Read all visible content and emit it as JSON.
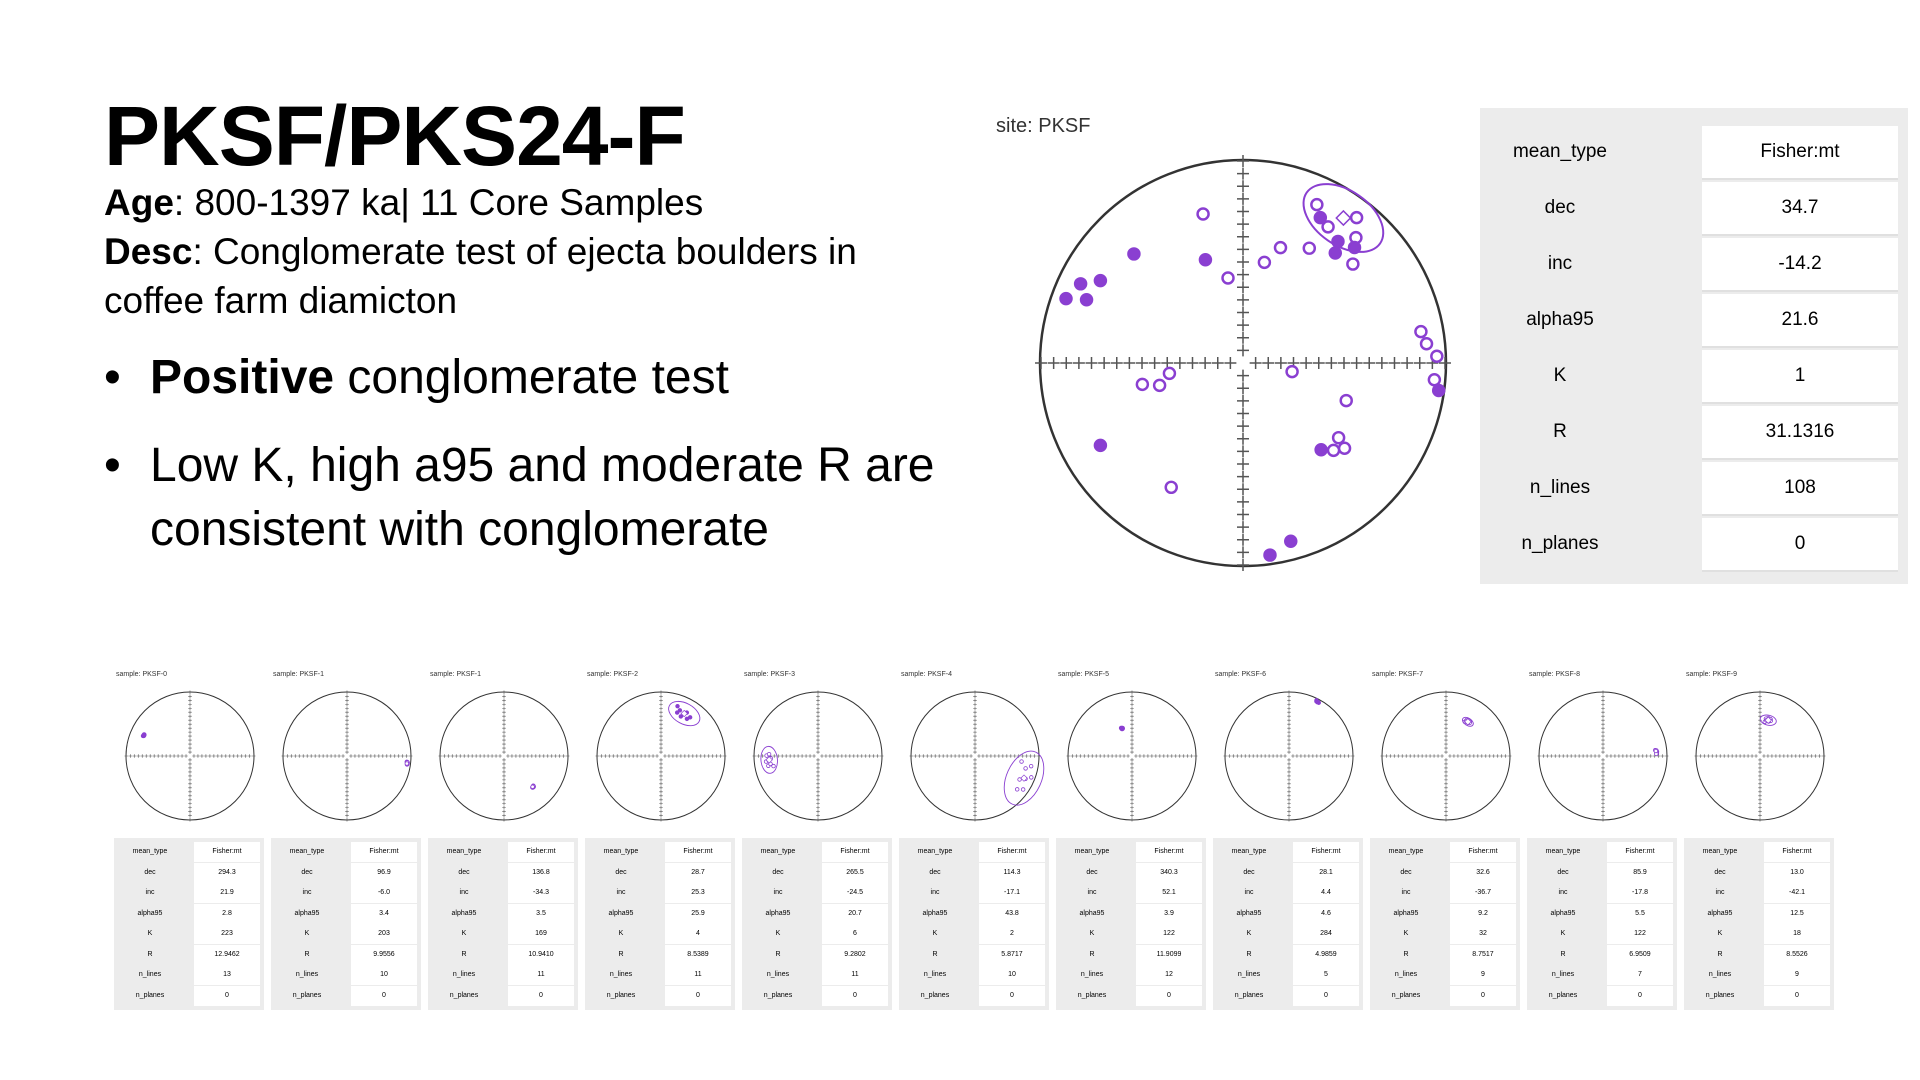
{
  "slide": {
    "title": "PKSF/PKS24-F",
    "age_label": "Age",
    "age_value": ": 800-1397 ka| 11 Core Samples",
    "desc_label": "Desc",
    "desc_value": ": Conglomerate test of ejecta boulders in coffee farm diamicton",
    "bullets": [
      {
        "bold": "Positive",
        "rest": " conglomerate test"
      },
      {
        "bold": "",
        "rest": "Low K, high a95 and moderate R are consistent with conglomerate"
      }
    ],
    "bullet_glyph": "•"
  },
  "colors": {
    "accent": "#8a3fd1",
    "ring": "#333333",
    "panel": "#ececec"
  },
  "chart_data": {
    "type": "scatter",
    "title": "site: PKSF",
    "projection": "equal-area stereonet",
    "mean": {
      "dec": 34.7,
      "inc": -14.2,
      "alpha95": 21.6
    },
    "points": [
      {
        "dec": 345,
        "inc": -25,
        "hemisphere": "upper"
      },
      {
        "dec": 25,
        "inc": -15,
        "hemisphere": "upper"
      },
      {
        "dec": 32,
        "inc": -22,
        "hemisphere": "upper"
      },
      {
        "dec": 38,
        "inc": -10,
        "hemisphere": "upper"
      },
      {
        "dec": 42,
        "inc": -18,
        "hemisphere": "upper"
      },
      {
        "dec": 30,
        "inc": -35,
        "hemisphere": "upper"
      },
      {
        "dec": 48,
        "inc": -28,
        "hemisphere": "upper"
      },
      {
        "dec": 18,
        "inc": -40,
        "hemisphere": "upper"
      },
      {
        "dec": 12,
        "inc": -48,
        "hemisphere": "upper"
      },
      {
        "dec": 350,
        "inc": -55,
        "hemisphere": "upper"
      },
      {
        "dec": 40,
        "inc": -30,
        "hemisphere": "lower"
      },
      {
        "dec": 38,
        "inc": -25,
        "hemisphere": "lower"
      },
      {
        "dec": 44,
        "inc": -22,
        "hemisphere": "lower"
      },
      {
        "dec": 28,
        "inc": -20,
        "hemisphere": "lower"
      },
      {
        "dec": 340,
        "inc": -45,
        "hemisphere": "lower"
      },
      {
        "dec": 300,
        "inc": -20,
        "hemisphere": "lower"
      },
      {
        "dec": 296,
        "inc": -12,
        "hemisphere": "lower"
      },
      {
        "dec": 292,
        "inc": -18,
        "hemisphere": "lower"
      },
      {
        "dec": 290,
        "inc": -8,
        "hemisphere": "lower"
      },
      {
        "dec": 315,
        "inc": -25,
        "hemisphere": "lower"
      },
      {
        "dec": 88,
        "inc": -5,
        "hemisphere": "upper"
      },
      {
        "dec": 84,
        "inc": -10,
        "hemisphere": "upper"
      },
      {
        "dec": 80,
        "inc": -12,
        "hemisphere": "upper"
      },
      {
        "dec": 95,
        "inc": -6,
        "hemisphere": "upper"
      },
      {
        "dec": 98,
        "inc": -3,
        "hemisphere": "lower"
      },
      {
        "dec": 130,
        "inc": -35,
        "hemisphere": "upper"
      },
      {
        "dec": 128,
        "inc": -40,
        "hemisphere": "upper"
      },
      {
        "dec": 134,
        "inc": -38,
        "hemisphere": "upper"
      },
      {
        "dec": 138,
        "inc": -42,
        "hemisphere": "lower"
      },
      {
        "dec": 165,
        "inc": -10,
        "hemisphere": "lower"
      },
      {
        "dec": 172,
        "inc": -5,
        "hemisphere": "lower"
      },
      {
        "dec": 210,
        "inc": -30,
        "hemisphere": "upper"
      },
      {
        "dec": 240,
        "inc": -20,
        "hemisphere": "lower"
      },
      {
        "dec": 255,
        "inc": -55,
        "hemisphere": "upper"
      },
      {
        "dec": 258,
        "inc": -48,
        "hemisphere": "upper"
      },
      {
        "dec": 262,
        "inc": -60,
        "hemisphere": "upper"
      },
      {
        "dec": 110,
        "inc": -45,
        "hemisphere": "upper"
      },
      {
        "dec": 100,
        "inc": -70,
        "hemisphere": "upper"
      }
    ],
    "stats": [
      {
        "key": "mean_type",
        "value": "Fisher:mt"
      },
      {
        "key": "dec",
        "value": "34.7"
      },
      {
        "key": "inc",
        "value": "-14.2"
      },
      {
        "key": "alpha95",
        "value": "21.6"
      },
      {
        "key": "K",
        "value": "1"
      },
      {
        "key": "R",
        "value": "31.1316"
      },
      {
        "key": "n_lines",
        "value": "108"
      },
      {
        "key": "n_planes",
        "value": "0"
      }
    ]
  },
  "samples": [
    {
      "label": "sample: PKSF-0",
      "stats": [
        "Fisher:mt",
        "294.3",
        "21.9",
        "2.8",
        "223",
        "12.9462",
        "13",
        "0"
      ]
    },
    {
      "label": "sample: PKSF-1",
      "stats": [
        "Fisher:mt",
        "96.9",
        "-6.0",
        "3.4",
        "203",
        "9.9556",
        "10",
        "0"
      ]
    },
    {
      "label": "sample: PKSF-1",
      "stats": [
        "Fisher:mt",
        "136.8",
        "-34.3",
        "3.5",
        "169",
        "10.9410",
        "11",
        "0"
      ]
    },
    {
      "label": "sample: PKSF-2",
      "stats": [
        "Fisher:mt",
        "28.7",
        "25.3",
        "25.9",
        "4",
        "8.5389",
        "11",
        "0"
      ]
    },
    {
      "label": "sample: PKSF-3",
      "stats": [
        "Fisher:mt",
        "265.5",
        "-24.5",
        "20.7",
        "6",
        "9.2802",
        "11",
        "0"
      ]
    },
    {
      "label": "sample: PKSF-4",
      "stats": [
        "Fisher:mt",
        "114.3",
        "-17.1",
        "43.8",
        "2",
        "5.8717",
        "10",
        "0"
      ]
    },
    {
      "label": "sample: PKSF-5",
      "stats": [
        "Fisher:mt",
        "340.3",
        "52.1",
        "3.9",
        "122",
        "11.9099",
        "12",
        "0"
      ]
    },
    {
      "label": "sample: PKSF-6",
      "stats": [
        "Fisher:mt",
        "28.1",
        "4.4",
        "4.6",
        "284",
        "4.9859",
        "5",
        "0"
      ]
    },
    {
      "label": "sample: PKSF-7",
      "stats": [
        "Fisher:mt",
        "32.6",
        "-36.7",
        "9.2",
        "32",
        "8.7517",
        "9",
        "0"
      ]
    },
    {
      "label": "sample: PKSF-8",
      "stats": [
        "Fisher:mt",
        "85.9",
        "-17.8",
        "5.5",
        "122",
        "6.9509",
        "7",
        "0"
      ]
    },
    {
      "label": "sample: PKSF-9",
      "stats": [
        "Fisher:mt",
        "13.0",
        "-42.1",
        "12.5",
        "18",
        "8.5526",
        "9",
        "0"
      ]
    }
  ],
  "sample_keys": [
    "mean_type",
    "dec",
    "inc",
    "alpha95",
    "K",
    "R",
    "n_lines",
    "n_planes"
  ]
}
